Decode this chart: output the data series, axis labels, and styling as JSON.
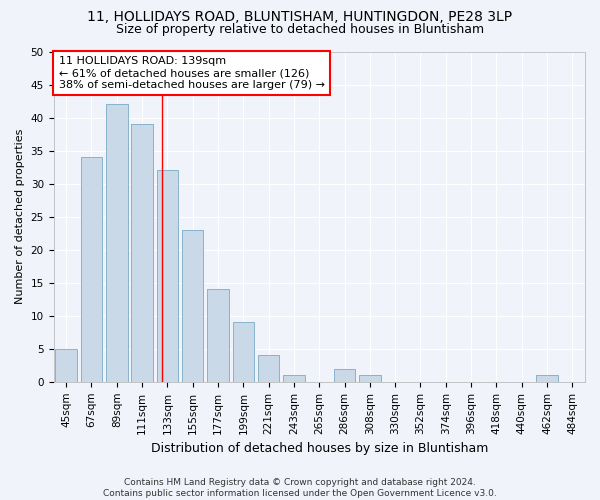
{
  "title": "11, HOLLIDAYS ROAD, BLUNTISHAM, HUNTINGDON, PE28 3LP",
  "subtitle": "Size of property relative to detached houses in Bluntisham",
  "xlabel": "Distribution of detached houses by size in Bluntisham",
  "ylabel": "Number of detached properties",
  "bin_labels": [
    "45sqm",
    "67sqm",
    "89sqm",
    "111sqm",
    "133sqm",
    "155sqm",
    "177sqm",
    "199sqm",
    "221sqm",
    "243sqm",
    "265sqm",
    "286sqm",
    "308sqm",
    "330sqm",
    "352sqm",
    "374sqm",
    "396sqm",
    "418sqm",
    "440sqm",
    "462sqm",
    "484sqm"
  ],
  "bar_values": [
    5,
    34,
    42,
    39,
    32,
    23,
    14,
    9,
    4,
    1,
    0,
    2,
    1,
    0,
    0,
    0,
    0,
    0,
    0,
    1,
    0
  ],
  "bar_color": "#c9d9e8",
  "bar_edge_color": "#7aaac8",
  "annotation_text": "11 HOLLIDAYS ROAD: 139sqm\n← 61% of detached houses are smaller (126)\n38% of semi-detached houses are larger (79) →",
  "annotation_box_color": "white",
  "annotation_box_edge_color": "red",
  "footer": "Contains HM Land Registry data © Crown copyright and database right 2024.\nContains public sector information licensed under the Open Government Licence v3.0.",
  "ylim": [
    0,
    50
  ],
  "yticks": [
    0,
    5,
    10,
    15,
    20,
    25,
    30,
    35,
    40,
    45,
    50
  ],
  "background_color": "#f0f4fa",
  "grid_color": "white",
  "title_fontsize": 10,
  "subtitle_fontsize": 9,
  "ylabel_fontsize": 8,
  "xlabel_fontsize": 9,
  "tick_fontsize": 7.5,
  "footer_fontsize": 6.5,
  "annotation_fontsize": 8
}
